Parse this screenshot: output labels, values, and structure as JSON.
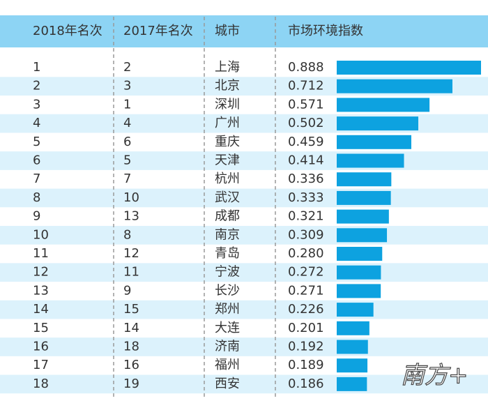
{
  "chart_data": {
    "type": "bar",
    "columns": [
      "2018年名次",
      "2017年名次",
      "城市",
      "市场环境指数"
    ],
    "rank_2018": [
      1,
      2,
      3,
      4,
      5,
      6,
      7,
      8,
      9,
      10,
      11,
      12,
      13,
      14,
      15,
      16,
      17,
      18
    ],
    "rank_2017": [
      2,
      3,
      1,
      4,
      6,
      5,
      7,
      10,
      13,
      8,
      12,
      11,
      9,
      15,
      14,
      18,
      16,
      19
    ],
    "categories": [
      "上海",
      "北京",
      "深圳",
      "广州",
      "重庆",
      "天津",
      "杭州",
      "武汉",
      "成都",
      "南京",
      "青岛",
      "宁波",
      "长沙",
      "郑州",
      "大连",
      "济南",
      "福州",
      "西安"
    ],
    "values": [
      0.888,
      0.712,
      0.571,
      0.502,
      0.459,
      0.414,
      0.336,
      0.333,
      0.321,
      0.309,
      0.28,
      0.272,
      0.271,
      0.226,
      0.201,
      0.192,
      0.189,
      0.186
    ],
    "value_labels": [
      "0.888",
      "0.712",
      "0.571",
      "0.502",
      "0.459",
      "0.414",
      "0.336",
      "0.333",
      "0.321",
      "0.309",
      "0.280",
      "0.272",
      "0.271",
      "0.226",
      "0.201",
      "0.192",
      "0.189",
      "0.186"
    ],
    "color": "#0da2e0"
  },
  "watermark": "南方+"
}
